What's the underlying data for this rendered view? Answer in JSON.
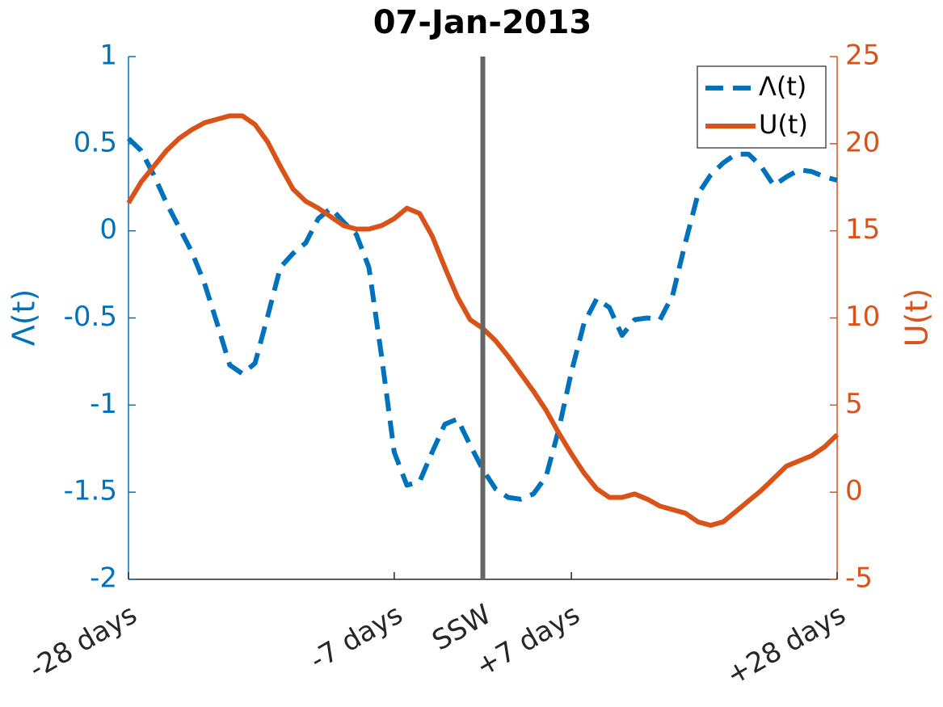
{
  "chart_data": {
    "type": "line",
    "title": "07-Jan-2013",
    "ylabel": "Λ(t)",
    "y2label": "U(t)",
    "x": [
      -28,
      -27,
      -26,
      -25,
      -24,
      -23,
      -22,
      -21,
      -20,
      -19,
      -18,
      -17,
      -16,
      -15,
      -14,
      -13,
      -12,
      -11,
      -10,
      -9,
      -8,
      -7,
      -6,
      -5,
      -4,
      -3,
      -2,
      -1,
      0,
      1,
      2,
      3,
      4,
      5,
      6,
      7,
      8,
      9,
      10,
      11,
      12,
      13,
      14,
      15,
      16,
      17,
      18,
      19,
      20,
      21,
      22,
      23,
      24,
      25,
      26,
      27,
      28
    ],
    "xlim": [
      -28,
      28
    ],
    "xticks": [
      {
        "value": -28,
        "label": "-28 days"
      },
      {
        "value": -7,
        "label": "-7 days"
      },
      {
        "value": 0,
        "label": "SSW"
      },
      {
        "value": 7,
        "label": "+7 days"
      },
      {
        "value": 28,
        "label": "+28 days"
      }
    ],
    "ylim": [
      -2,
      1
    ],
    "yticks": [
      -2,
      -1.5,
      -1,
      -0.5,
      0,
      0.5,
      1
    ],
    "y2lim": [
      -5,
      25
    ],
    "y2ticks": [
      -5,
      0,
      5,
      10,
      15,
      20,
      25
    ],
    "vline": {
      "x": 0,
      "color": "#646464"
    },
    "legend": "upper right",
    "series": [
      {
        "name": "Λ(t)",
        "color": "#0072BD",
        "dash": true,
        "values": [
          0.53,
          0.46,
          0.32,
          0.16,
          0.02,
          -0.12,
          -0.3,
          -0.53,
          -0.77,
          -0.82,
          -0.76,
          -0.49,
          -0.21,
          -0.13,
          -0.07,
          0.07,
          0.13,
          0.05,
          -0.02,
          -0.21,
          -0.72,
          -1.27,
          -1.46,
          -1.44,
          -1.27,
          -1.11,
          -1.08,
          -1.23,
          -1.37,
          -1.48,
          -1.53,
          -1.54,
          -1.51,
          -1.41,
          -1.14,
          -0.81,
          -0.53,
          -0.39,
          -0.44,
          -0.6,
          -0.51,
          -0.5,
          -0.51,
          -0.37,
          -0.07,
          0.21,
          0.32,
          0.39,
          0.44,
          0.44,
          0.37,
          0.26,
          0.31,
          0.35,
          0.34,
          0.31,
          0.29
        ]
      },
      {
        "name": "U(t)",
        "color": "#D95319",
        "axis": "y2",
        "values": [
          16.6,
          17.8,
          18.7,
          19.6,
          20.3,
          20.8,
          21.2,
          21.4,
          21.6,
          21.6,
          21.1,
          20.1,
          18.7,
          17.4,
          16.7,
          16.3,
          15.8,
          15.3,
          15.1,
          15.1,
          15.3,
          15.7,
          16.3,
          16.0,
          14.7,
          12.9,
          11.2,
          9.9,
          9.4,
          8.7,
          7.8,
          6.8,
          5.8,
          4.7,
          3.4,
          2.2,
          1.1,
          0.2,
          -0.3,
          -0.3,
          -0.1,
          -0.4,
          -0.8,
          -1.0,
          -1.2,
          -1.7,
          -1.9,
          -1.7,
          -1.1,
          -0.5,
          0.1,
          0.8,
          1.5,
          1.8,
          2.1,
          2.6,
          3.3
        ]
      }
    ]
  }
}
